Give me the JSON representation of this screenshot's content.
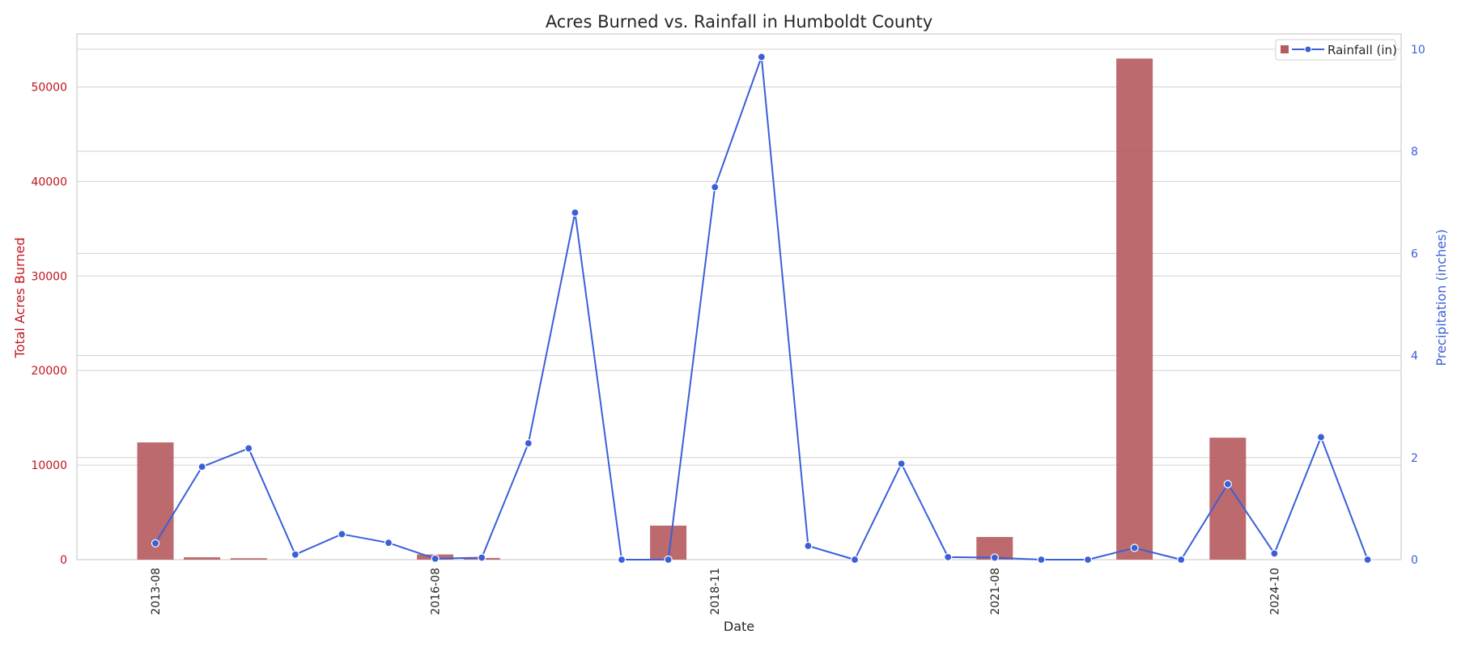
{
  "chart_data": {
    "type": "bar",
    "title": "Acres Burned vs. Rainfall in Humboldt County",
    "xlabel": "Date",
    "ylabel_left": "Total Acres Burned",
    "ylabel_right": "Precipitation (inches)",
    "ylim_left": [
      0,
      55600
    ],
    "ylim_right": [
      0,
      10.3
    ],
    "yticks_left": [
      0,
      10000,
      20000,
      30000,
      40000,
      50000
    ],
    "yticks_right": [
      0,
      2,
      4,
      6,
      8,
      10
    ],
    "grid": true,
    "legend_position": "top-right",
    "colors": {
      "bars": "#b55a5d",
      "line": "#3a5fd9",
      "left_axis": "#c0141c",
      "right_axis": "#3a5fd9"
    },
    "x_tick_labels": [
      {
        "index": 0,
        "label": "2013-08"
      },
      {
        "index": 6,
        "label": "2016-08"
      },
      {
        "index": 12,
        "label": "2018-11"
      },
      {
        "index": 18,
        "label": "2021-08"
      },
      {
        "index": 24,
        "label": "2024-10"
      }
    ],
    "acres_burned": [
      12400,
      250,
      150,
      0,
      0,
      0,
      550,
      180,
      0,
      0,
      0,
      3600,
      0,
      0,
      0,
      0,
      0,
      0,
      2400,
      0,
      0,
      53000,
      0,
      12900,
      0,
      0,
      0
    ],
    "series": [
      {
        "name": "Rainfall (in)",
        "values": [
          0.32,
          1.82,
          2.18,
          0.1,
          0.5,
          0.33,
          0.02,
          0.04,
          2.28,
          6.8,
          0.0,
          0.0,
          7.3,
          9.85,
          0.27,
          0.0,
          1.88,
          0.05,
          0.04,
          0.0,
          0.0,
          0.23,
          0.0,
          1.48,
          0.12,
          2.4,
          0.0
        ]
      }
    ]
  }
}
